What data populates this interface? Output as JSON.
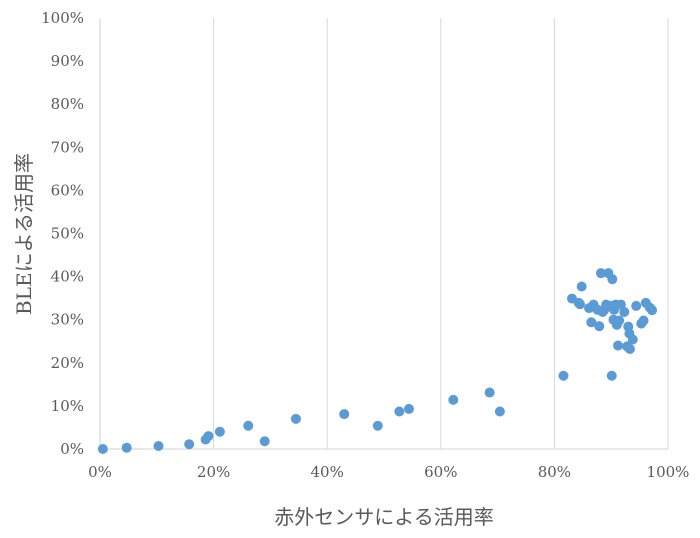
{
  "chart_data": {
    "type": "scatter",
    "xlabel": "赤外センサによる活用率",
    "ylabel": "BLEによる活用率",
    "xlim": [
      0,
      100
    ],
    "ylim": [
      0,
      100
    ],
    "x_ticks": [
      "0%",
      "20%",
      "40%",
      "60%",
      "80%",
      "100%"
    ],
    "y_ticks": [
      "0%",
      "10%",
      "20%",
      "30%",
      "40%",
      "50%",
      "60%",
      "70%",
      "80%",
      "90%",
      "100%"
    ],
    "grid": "vertical",
    "marker_color": "#5b9bd5",
    "gridline_color": "#d9d9d9",
    "points": [
      [
        0.5,
        0.0
      ],
      [
        4.7,
        0.3
      ],
      [
        10.3,
        0.7
      ],
      [
        15.7,
        1.1
      ],
      [
        18.6,
        2.2
      ],
      [
        19.1,
        3.0
      ],
      [
        21.1,
        4.0
      ],
      [
        26.1,
        5.4
      ],
      [
        29.0,
        1.8
      ],
      [
        34.5,
        7.0
      ],
      [
        43.0,
        8.1
      ],
      [
        48.9,
        5.4
      ],
      [
        52.7,
        8.7
      ],
      [
        54.4,
        9.3
      ],
      [
        62.2,
        11.4
      ],
      [
        68.6,
        13.1
      ],
      [
        70.4,
        8.7
      ],
      [
        81.6,
        17.0
      ],
      [
        83.1,
        34.9
      ],
      [
        84.3,
        33.9
      ],
      [
        84.5,
        33.6
      ],
      [
        84.8,
        37.7
      ],
      [
        86.1,
        32.7
      ],
      [
        86.5,
        29.4
      ],
      [
        86.9,
        33.5
      ],
      [
        87.6,
        32.3
      ],
      [
        87.9,
        28.5
      ],
      [
        88.2,
        40.8
      ],
      [
        88.5,
        31.8
      ],
      [
        88.8,
        32.3
      ],
      [
        89.1,
        33.5
      ],
      [
        89.5,
        40.8
      ],
      [
        89.8,
        33.2
      ],
      [
        90.1,
        17.0
      ],
      [
        90.2,
        39.4
      ],
      [
        90.4,
        30.0
      ],
      [
        90.5,
        32.3
      ],
      [
        90.8,
        33.5
      ],
      [
        91.0,
        28.8
      ],
      [
        91.2,
        24.0
      ],
      [
        91.4,
        29.8
      ],
      [
        91.7,
        33.5
      ],
      [
        92.3,
        31.8
      ],
      [
        92.8,
        23.8
      ],
      [
        93.0,
        28.4
      ],
      [
        93.2,
        26.8
      ],
      [
        93.3,
        23.2
      ],
      [
        93.8,
        25.4
      ],
      [
        94.4,
        33.2
      ],
      [
        95.3,
        29.1
      ],
      [
        95.7,
        29.8
      ],
      [
        96.1,
        33.9
      ],
      [
        96.8,
        32.8
      ],
      [
        97.2,
        32.2
      ]
    ]
  }
}
